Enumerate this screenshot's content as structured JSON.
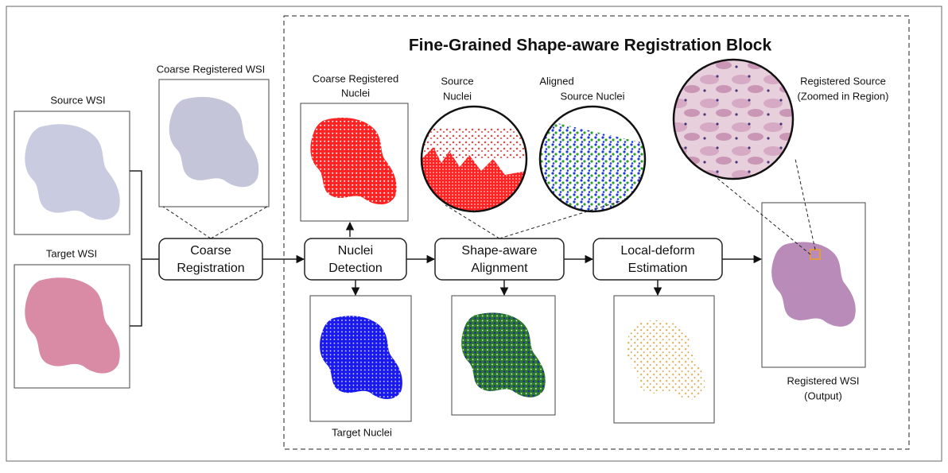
{
  "title": "Fine-Grained Shape-aware  Registration Block",
  "images": {
    "source_wsi": "Source WSI",
    "target_wsi": "Target WSI",
    "coarse_registered_wsi": "Coarse Registered WSI",
    "coarse_registered_nuclei": [
      "Coarse Registered",
      "Nuclei"
    ],
    "source_nuclei": [
      "Source",
      "Nuclei"
    ],
    "aligned_source_nuclei": [
      "Aligned",
      "Source Nuclei"
    ],
    "registered_source_zoom": [
      "Registered Source",
      "(Zoomed in  Region)"
    ],
    "target_nuclei": "Target Nuclei",
    "registered_wsi": [
      "Registered WSI",
      "(Output)"
    ]
  },
  "steps": [
    {
      "label": [
        "Coarse",
        "Registration"
      ]
    },
    {
      "label": [
        "Nuclei",
        "Detection"
      ]
    },
    {
      "label": [
        "Shape-aware",
        "Alignment"
      ]
    },
    {
      "label": [
        "Local-deform",
        "Estimation"
      ]
    }
  ]
}
